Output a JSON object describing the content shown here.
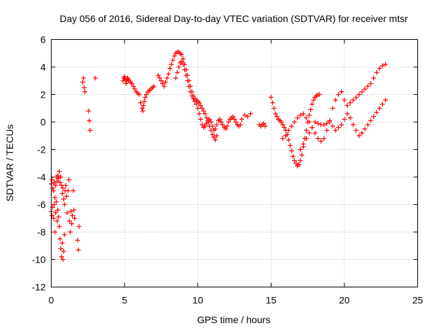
{
  "chart_data": {
    "type": "scatter",
    "title": "Day 056 of 2016, Sidereal Day-to-day VTEC variation (SDTVAR) for receiver mtsr",
    "xlabel": "GPS time / hours",
    "ylabel": "SDTVAR / TECUs",
    "xlim": [
      0,
      25
    ],
    "ylim": [
      -12,
      6
    ],
    "xticks": [
      0,
      5,
      10,
      15,
      20,
      25
    ],
    "yticks": [
      -12,
      -10,
      -8,
      -6,
      -4,
      -2,
      0,
      2,
      4,
      6
    ],
    "grid": true,
    "marker": "+",
    "color": "#ff0000",
    "series": [
      {
        "name": "SDTVAR",
        "x": [
          0.0,
          0.0,
          0.05,
          0.05,
          0.1,
          0.1,
          0.15,
          0.15,
          0.2,
          0.2,
          0.25,
          0.25,
          0.3,
          0.3,
          0.35,
          0.35,
          0.4,
          0.4,
          0.45,
          0.45,
          0.5,
          0.5,
          0.55,
          0.55,
          0.6,
          0.6,
          0.65,
          0.65,
          0.7,
          0.7,
          0.75,
          0.75,
          0.8,
          0.8,
          0.85,
          0.85,
          0.9,
          0.9,
          0.95,
          1.0,
          1.05,
          1.1,
          1.15,
          1.2,
          1.25,
          1.3,
          1.35,
          1.4,
          1.45,
          1.5,
          1.55,
          1.6,
          1.8,
          1.85,
          1.9,
          2.15,
          2.2,
          2.25,
          2.3,
          2.55,
          2.6,
          2.65,
          3.0,
          4.9,
          4.95,
          5.0,
          5.05,
          5.1,
          5.15,
          5.2,
          5.25,
          5.3,
          5.4,
          5.5,
          5.6,
          5.7,
          5.8,
          5.9,
          6.0,
          6.1,
          6.2,
          6.25,
          6.3,
          6.35,
          6.4,
          6.5,
          6.6,
          6.7,
          6.8,
          6.9,
          7.0,
          7.3,
          7.4,
          7.5,
          7.6,
          7.7,
          7.8,
          7.9,
          8.0,
          8.1,
          8.2,
          8.3,
          8.4,
          8.5,
          8.6,
          8.7,
          8.8,
          8.9,
          9.0,
          9.1,
          9.2,
          9.3,
          9.4,
          9.5,
          9.6,
          9.7,
          9.8,
          9.9,
          10.0,
          10.1,
          10.2,
          10.3,
          10.4,
          10.5,
          10.6,
          10.7,
          10.8,
          10.9,
          11.0,
          11.1,
          11.2,
          11.3,
          8.5,
          8.6,
          8.7,
          8.8,
          8.9,
          9.0,
          9.1,
          9.2,
          9.3,
          9.4,
          9.5,
          9.6,
          9.7,
          9.8,
          9.9,
          10.0,
          10.1,
          10.2,
          10.3,
          10.4,
          10.5,
          10.6,
          10.7,
          10.8,
          10.9,
          11.0,
          11.1,
          11.2,
          11.3,
          11.4,
          11.5,
          11.6,
          11.7,
          11.8,
          11.9,
          12.0,
          12.1,
          12.2,
          12.3,
          12.4,
          12.5,
          12.6,
          12.7,
          12.8,
          12.9,
          13.0,
          13.2,
          13.4,
          13.6,
          14.2,
          14.3,
          14.4,
          14.5,
          14.6,
          15.0,
          15.1,
          15.2,
          15.3,
          15.4,
          15.5,
          15.6,
          15.7,
          15.8,
          15.9,
          16.0,
          16.1,
          16.2,
          16.3,
          16.4,
          16.5,
          16.6,
          16.7,
          16.8,
          16.9,
          17.0,
          17.1,
          17.2,
          17.3,
          17.4,
          17.5,
          17.6,
          17.7,
          17.8,
          17.9,
          18.0,
          18.1,
          18.2,
          18.3,
          15.8,
          16.0,
          16.2,
          16.4,
          16.6,
          16.8,
          17.0,
          17.2,
          17.4,
          17.6,
          17.8,
          18.0,
          18.2,
          18.4,
          18.6,
          18.8,
          19.0,
          19.2,
          19.4,
          19.6,
          19.8,
          20.0,
          20.2,
          20.4,
          20.6,
          20.8,
          21.0,
          21.2,
          21.4,
          21.6,
          21.8,
          22.0,
          22.2,
          22.4,
          22.6,
          22.8,
          17.0,
          17.2,
          17.4,
          17.6,
          17.8,
          18.0,
          18.2,
          18.4,
          18.6,
          18.8,
          19.0,
          19.2,
          19.4,
          19.6,
          19.8,
          20.0,
          20.2,
          20.4,
          20.6,
          20.8,
          21.0,
          21.2,
          21.4,
          21.6,
          21.8,
          22.0,
          22.2,
          22.4,
          22.6,
          22.8
        ],
        "y": [
          -4.5,
          -6.5,
          -4.2,
          -6.8,
          -4.8,
          -6.2,
          -5.0,
          -7.0,
          -4.4,
          -6.0,
          -5.5,
          -8.0,
          -4.6,
          -6.6,
          -4.0,
          -5.8,
          -4.3,
          -7.2,
          -3.9,
          -6.4,
          -4.1,
          -6.9,
          -3.6,
          -7.6,
          -4.4,
          -8.5,
          -4.0,
          -9.2,
          -4.6,
          -9.8,
          -5.2,
          -8.8,
          -4.8,
          -10.0,
          -5.6,
          -9.4,
          -6.0,
          -8.2,
          -5.0,
          -4.6,
          -5.4,
          -6.6,
          -5.0,
          -4.2,
          -7.2,
          -8.0,
          -6.5,
          -7.4,
          -6.8,
          -5.0,
          -6.4,
          -7.0,
          -8.6,
          -9.3,
          -7.6,
          2.9,
          3.2,
          2.5,
          2.2,
          0.8,
          0.1,
          -0.6,
          3.2,
          3.0,
          3.2,
          3.3,
          3.1,
          2.8,
          3.0,
          3.2,
          3.1,
          3.0,
          2.9,
          2.8,
          2.6,
          2.4,
          2.2,
          2.1,
          2.0,
          1.4,
          1.0,
          0.8,
          1.2,
          1.5,
          1.8,
          2.0,
          2.2,
          2.3,
          2.4,
          2.5,
          2.6,
          3.4,
          3.2,
          3.0,
          2.8,
          2.6,
          2.9,
          3.2,
          3.5,
          3.9,
          4.2,
          4.5,
          4.8,
          5.0,
          5.1,
          5.1,
          5.0,
          4.9,
          4.6,
          4.2,
          3.8,
          3.4,
          3.0,
          2.6,
          2.2,
          1.9,
          1.7,
          1.6,
          1.5,
          1.4,
          1.2,
          1.0,
          0.8,
          0.6,
          0.3,
          0.0,
          -0.3,
          -0.6,
          -0.9,
          -1.1,
          -1.3,
          -1.0,
          3.2,
          3.6,
          4.0,
          4.3,
          4.4,
          4.2,
          3.8,
          3.4,
          3.0,
          2.6,
          2.2,
          1.9,
          1.7,
          1.5,
          1.3,
          1.0,
          0.6,
          0.2,
          -0.2,
          -0.4,
          -0.3,
          -0.1,
          0.1,
          0.2,
          0.0,
          -0.3,
          -0.6,
          -0.5,
          -0.2,
          0.1,
          0.2,
          0.0,
          -0.2,
          -0.4,
          -0.5,
          -0.3,
          0.0,
          0.2,
          0.3,
          0.4,
          0.2,
          0.0,
          -0.2,
          -0.3,
          -0.2,
          0.2,
          0.5,
          0.4,
          0.6,
          -0.2,
          -0.3,
          -0.2,
          -0.1,
          -0.3,
          1.8,
          1.4,
          1.0,
          0.6,
          0.4,
          0.2,
          0.1,
          0.0,
          -0.2,
          -0.4,
          -0.6,
          -0.9,
          -1.3,
          -1.7,
          -2.1,
          -2.5,
          -2.8,
          -3.0,
          -3.2,
          -3.1,
          -2.8,
          -2.4,
          -1.8,
          -1.2,
          -0.6,
          0.0,
          0.5,
          0.9,
          1.3,
          1.6,
          1.8,
          1.9,
          2.0,
          2.0,
          -1.2,
          -1.0,
          -0.6,
          -0.3,
          0.0,
          0.3,
          0.5,
          0.6,
          0.3,
          0.0,
          -0.4,
          -0.8,
          -1.2,
          -1.4,
          -1.2,
          -0.6,
          0.1,
          1.0,
          1.6,
          2.0,
          2.2,
          1.6,
          1.2,
          1.4,
          1.6,
          1.8,
          2.0,
          2.2,
          2.4,
          2.6,
          2.8,
          3.2,
          3.6,
          3.9,
          4.1,
          4.2,
          -2.0,
          -1.6,
          -1.2,
          -0.8,
          -0.4,
          0.0,
          -0.1,
          -0.2,
          -0.2,
          -0.1,
          0.0,
          -0.3,
          -0.6,
          -0.4,
          -0.2,
          0.2,
          0.6,
          0.3,
          -0.2,
          -0.6,
          -1.0,
          -0.8,
          -0.5,
          -0.2,
          0.1,
          0.4,
          0.7,
          1.0,
          1.3,
          1.6
        ]
      }
    ]
  }
}
